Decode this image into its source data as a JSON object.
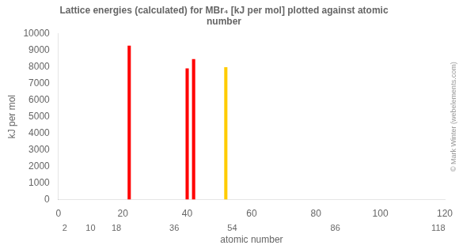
{
  "chart_data": {
    "type": "bar",
    "title": "Lattice energies (calculated) for MBr₄ [kJ per mol] plotted against atomic\nnumber",
    "x_label": "atomic number",
    "y_label": "kJ per mol",
    "x": [
      22,
      40,
      42,
      52
    ],
    "values": [
      9285,
      7920,
      8480,
      7990
    ],
    "colors": [
      "#ff0000",
      "#ff0000",
      "#ff0000",
      "#ffcc00"
    ],
    "xlim": [
      0,
      120
    ],
    "xticks": [
      0,
      20,
      40,
      60,
      80,
      100,
      120
    ],
    "ylim": [
      0,
      10000
    ],
    "yticks": [
      0,
      1000,
      2000,
      3000,
      4000,
      5000,
      6000,
      7000,
      8000,
      9000,
      10000
    ],
    "grid": false,
    "annotations": [
      {
        "x": 2,
        "text": "2"
      },
      {
        "x": 10,
        "text": "10"
      },
      {
        "x": 18,
        "text": "18"
      },
      {
        "x": 36,
        "text": "36"
      },
      {
        "x": 54,
        "text": "54"
      },
      {
        "x": 86,
        "text": "86"
      },
      {
        "x": 118,
        "text": "118"
      },
      {
        "text": "© Mark Winter (webelements.com)"
      }
    ]
  }
}
